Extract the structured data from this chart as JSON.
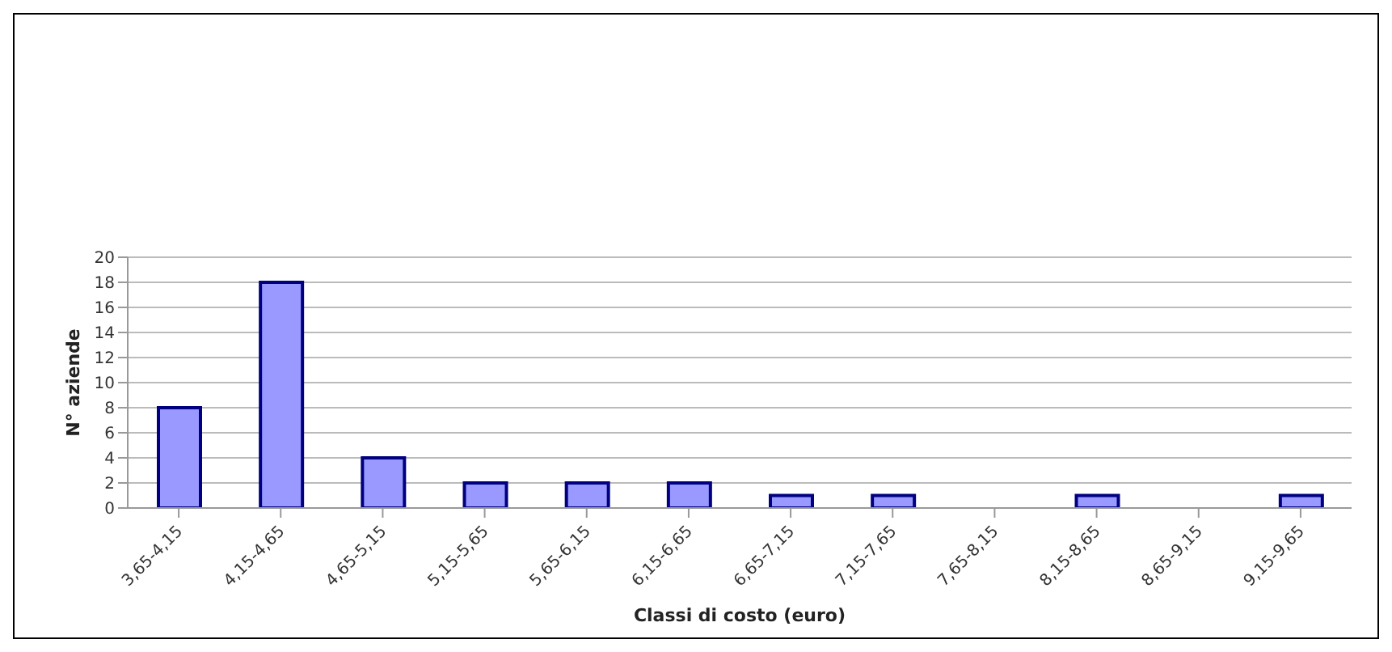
{
  "chart_data": {
    "type": "bar",
    "xlabel": "Classi di costo (euro)",
    "ylabel": "N° aziende",
    "categories": [
      "3,65-4,15",
      "4,15-4,65",
      "4,65-5,15",
      "5,15-5,65",
      "5,65-6,15",
      "6,15-6,65",
      "6,65-7,15",
      "7,15-7,65",
      "7,65-8,15",
      "8,15-8,65",
      "8,65-9,15",
      "9,15-9,65"
    ],
    "values": [
      8,
      18,
      4,
      2,
      2,
      2,
      1,
      1,
      0,
      1,
      0,
      1
    ],
    "color": "#9999ff",
    "ylim": [
      0,
      20
    ],
    "yticks": [
      0,
      2,
      4,
      6,
      8,
      10,
      12,
      14,
      16,
      18,
      20
    ],
    "grid": "y"
  }
}
